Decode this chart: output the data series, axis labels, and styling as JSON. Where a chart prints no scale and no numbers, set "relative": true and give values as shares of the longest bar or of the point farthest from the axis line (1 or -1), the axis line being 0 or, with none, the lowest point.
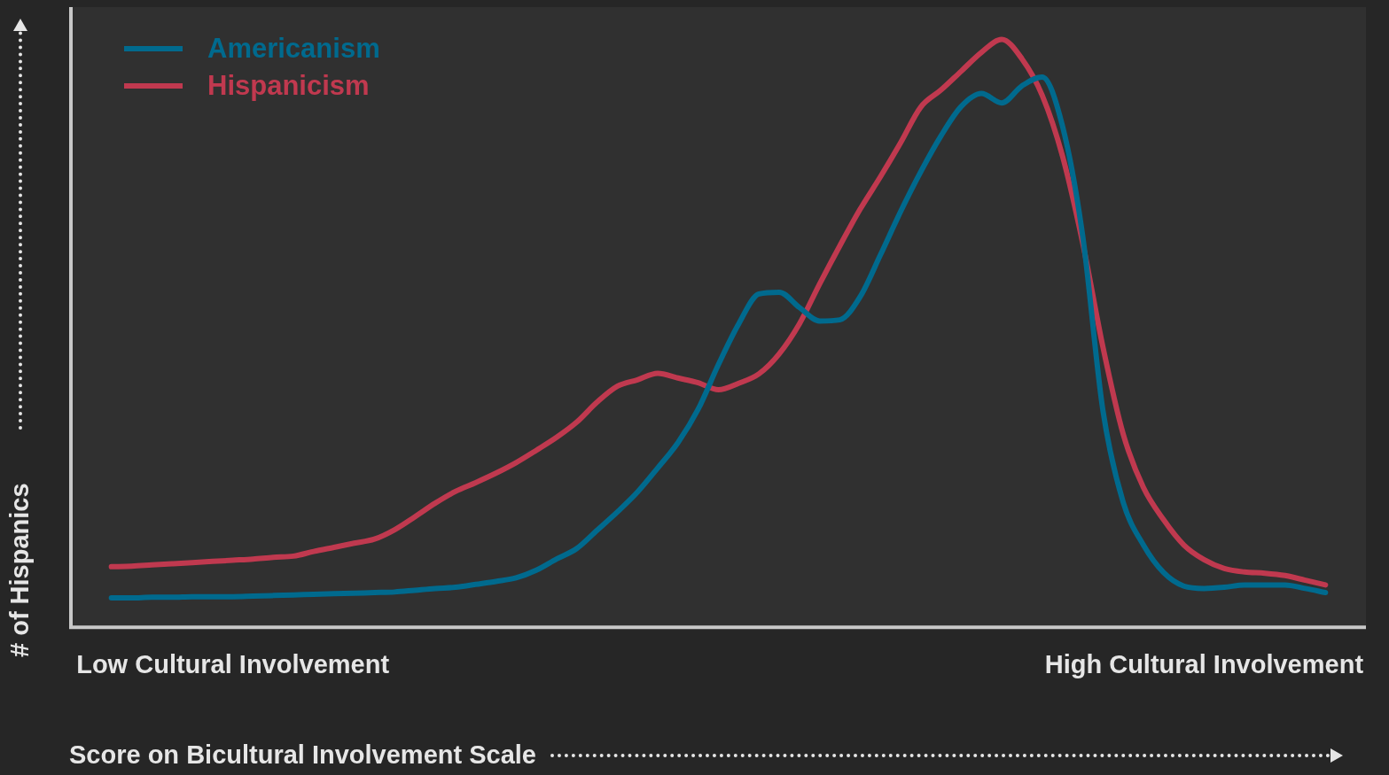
{
  "chart_data": {
    "type": "line",
    "relative": true,
    "xlabel": "Score on Bicultural Involvement Scale",
    "ylabel": "# of Hispanics",
    "legend": "top left",
    "grid": false,
    "marker": "none",
    "line_style": "solid",
    "categories": [
      null,
      null,
      null,
      null,
      null,
      null,
      null,
      null,
      "Low Cultural Involvement",
      null,
      null,
      null,
      null,
      null,
      null,
      null,
      null,
      null,
      null,
      null,
      null,
      null,
      null,
      null,
      null,
      null,
      null,
      null,
      null,
      null,
      null,
      null,
      null,
      null,
      null,
      null,
      null,
      null,
      null,
      null,
      null,
      null,
      null,
      null,
      null,
      null,
      null,
      null,
      null,
      null,
      null,
      null,
      null,
      null,
      null,
      null,
      "High Cultural Involvement",
      null,
      null,
      null,
      null,
      null,
      null,
      null,
      null
    ],
    "series": [
      {
        "name": "Americanism",
        "color": "#006a8e",
        "values": [
          null,
          null,
          0.05,
          0.05,
          0.051,
          0.051,
          0.052,
          0.052,
          0.052,
          0.053,
          0.054,
          0.055,
          0.056,
          0.057,
          0.058,
          0.059,
          0.06,
          0.063,
          0.066,
          0.068,
          0.073,
          0.078,
          0.084,
          0.097,
          0.116,
          0.134,
          0.165,
          0.196,
          0.23,
          0.271,
          0.314,
          0.371,
          0.447,
          0.516,
          0.567,
          0.57,
          0.544,
          0.521,
          0.523,
          0.562,
          0.633,
          0.707,
          0.775,
          0.836,
          0.886,
          0.908,
          0.892,
          0.921,
          0.936,
          0.853,
          0.666,
          0.369,
          0.213,
          0.14,
          0.093,
          0.07,
          0.066,
          0.068,
          0.072,
          0.072,
          0.072,
          0.066,
          0.059,
          null,
          null
        ]
      },
      {
        "name": "Hispanicism",
        "color": "#c0394f",
        "values": [
          null,
          null,
          0.103,
          0.104,
          0.106,
          0.108,
          0.11,
          0.112,
          0.114,
          0.116,
          0.119,
          0.121,
          0.129,
          0.136,
          0.143,
          0.15,
          0.166,
          0.188,
          0.211,
          0.231,
          0.246,
          0.262,
          0.28,
          0.301,
          0.323,
          0.349,
          0.383,
          0.41,
          0.421,
          0.432,
          0.424,
          0.416,
          0.404,
          0.415,
          0.431,
          0.465,
          0.516,
          0.584,
          0.649,
          0.711,
          0.766,
          0.824,
          0.885,
          0.914,
          0.946,
          0.978,
          1,
          0.967,
          0.905,
          0.802,
          0.654,
          0.477,
          0.329,
          0.238,
          0.183,
          0.14,
          0.115,
          0.1,
          0.094,
          0.092,
          0.088,
          0.08,
          0.072,
          null,
          null
        ]
      }
    ]
  }
}
